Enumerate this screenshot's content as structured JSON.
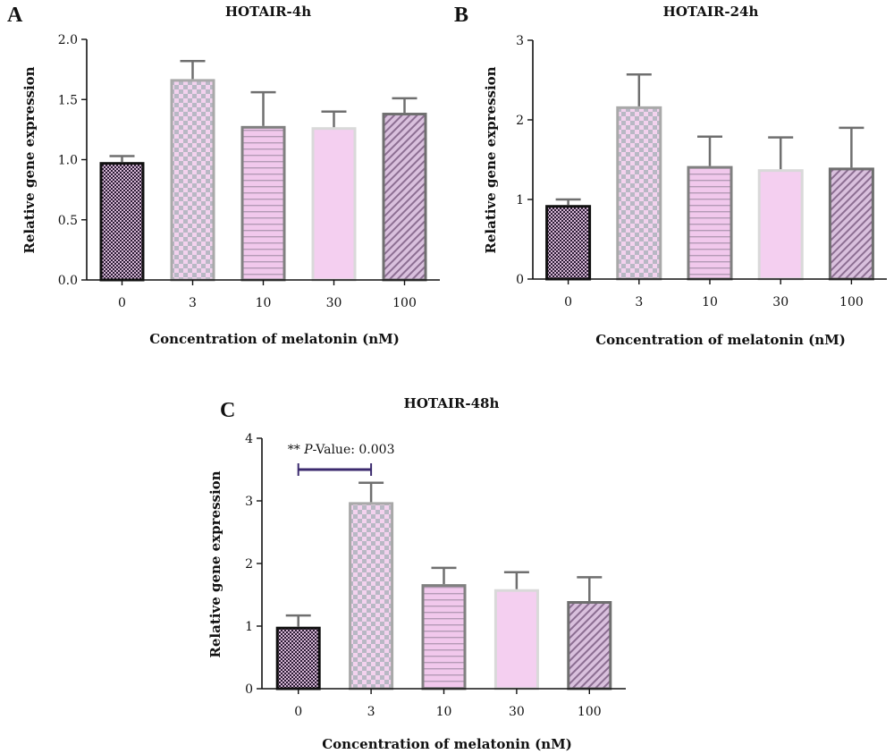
{
  "colors": {
    "axis": "#111111",
    "error_bar": "#6f6f6f",
    "sig_bracket": "#3b2a6e",
    "bar_fills": [
      "#2a1a33",
      "#f3d2ee",
      "#f1c8ec",
      "#f4cff0",
      "#d9c0dd"
    ],
    "bar_outlines": [
      "#111111",
      "#a9a9a9",
      "#808080",
      "#d9d9d9",
      "#6f6f6f"
    ],
    "pattern_marks": [
      "#d6b8d6",
      "#b8b8c4",
      "#b49ab6",
      "#f4cff0",
      "#8c6e92"
    ]
  },
  "chart_data": [
    {
      "type": "bar",
      "panel_label": "A",
      "title": "HOTAIR-4h",
      "xlabel": "Concentration of melatonin (nM)",
      "ylabel": "Relative gene expression",
      "categories": [
        "0",
        "3",
        "10",
        "30",
        "100"
      ],
      "values": [
        0.98,
        1.67,
        1.28,
        1.27,
        1.39
      ],
      "errors": [
        0.05,
        0.15,
        0.28,
        0.13,
        0.12
      ],
      "ylim": [
        0,
        2.0
      ],
      "yticks": [
        0.0,
        0.5,
        1.0,
        1.5,
        2.0
      ],
      "ytick_labels": [
        "0.0",
        "0.5",
        "1.0",
        "1.5",
        "2.0"
      ],
      "grid": false
    },
    {
      "type": "bar",
      "panel_label": "B",
      "title": "HOTAIR-24h",
      "xlabel": "Concentration of melatonin (nM)",
      "ylabel": "Relative gene expression",
      "categories": [
        "0",
        "3",
        "10",
        "30",
        "100"
      ],
      "values": [
        0.93,
        2.17,
        1.42,
        1.38,
        1.4
      ],
      "errors": [
        0.07,
        0.4,
        0.37,
        0.4,
        0.5
      ],
      "ylim": [
        0,
        3
      ],
      "yticks": [
        0,
        1,
        2,
        3
      ],
      "ytick_labels": [
        "0",
        "1",
        "2",
        "3"
      ],
      "grid": false
    },
    {
      "type": "bar",
      "panel_label": "C",
      "title": "HOTAIR-48h",
      "xlabel": "Concentration of melatonin (nM)",
      "ylabel": "Relative gene expression",
      "categories": [
        "0",
        "3",
        "10",
        "30",
        "100"
      ],
      "values": [
        0.99,
        2.98,
        1.67,
        1.59,
        1.4
      ],
      "errors": [
        0.18,
        0.31,
        0.26,
        0.27,
        0.38
      ],
      "ylim": [
        0,
        4
      ],
      "yticks": [
        0,
        1,
        2,
        3,
        4
      ],
      "ytick_labels": [
        "0",
        "1",
        "2",
        "3",
        "4"
      ],
      "grid": false,
      "annotations": [
        {
          "text_prefix": "** ",
          "text_italic": "P",
          "text_suffix": "-Value: 0.003",
          "from_category": "0",
          "to_category": "3",
          "level": 3.5
        }
      ]
    }
  ]
}
